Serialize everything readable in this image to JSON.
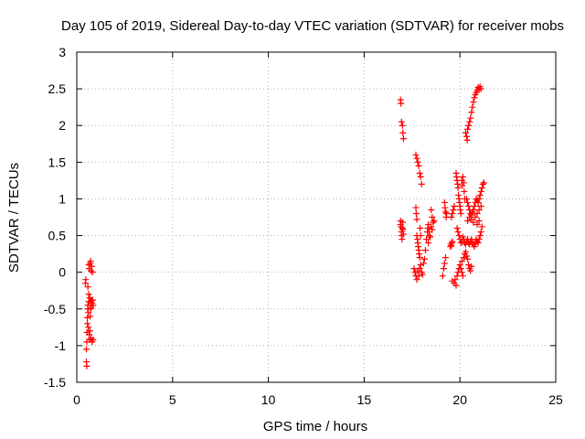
{
  "chart_data": {
    "type": "scatter",
    "title": "Day 105 of 2019, Sidereal Day-to-day VTEC variation (SDTVAR) for receiver mobs",
    "xlabel": "GPS time / hours",
    "ylabel": "SDTVAR / TECUs",
    "xlim": [
      0,
      25
    ],
    "ylim": [
      -1.5,
      3
    ],
    "grid": true,
    "marker": "+",
    "color": "#ff0000",
    "x_ticks": [
      "0",
      "5",
      "10",
      "15",
      "20",
      "25"
    ],
    "y_ticks": [
      "-1.5",
      "-1",
      "-0.5",
      "0",
      "0.5",
      "1",
      "1.5",
      "2",
      "2.5",
      "3"
    ],
    "series": [
      {
        "name": "SDTVAR",
        "points": [
          [
            0.45,
            -0.15
          ],
          [
            0.47,
            -0.1
          ],
          [
            0.5,
            -1.22
          ],
          [
            0.52,
            -1.28
          ],
          [
            0.5,
            -1.05
          ],
          [
            0.52,
            -0.95
          ],
          [
            0.53,
            -0.82
          ],
          [
            0.55,
            -0.7
          ],
          [
            0.55,
            -0.62
          ],
          [
            0.57,
            -0.5
          ],
          [
            0.58,
            -0.45
          ],
          [
            0.6,
            -0.55
          ],
          [
            0.62,
            -0.4
          ],
          [
            0.62,
            -0.3
          ],
          [
            0.63,
            0.1
          ],
          [
            0.65,
            0.05
          ],
          [
            0.65,
            -0.85
          ],
          [
            0.67,
            -0.92
          ],
          [
            0.68,
            -0.35
          ],
          [
            0.7,
            0.12
          ],
          [
            0.7,
            -0.6
          ],
          [
            0.72,
            -0.5
          ],
          [
            0.72,
            0.15
          ],
          [
            0.73,
            -0.4
          ],
          [
            0.75,
            -0.9
          ],
          [
            0.75,
            -0.48
          ],
          [
            0.77,
            -0.38
          ],
          [
            0.78,
            0.08
          ],
          [
            0.8,
            -0.95
          ],
          [
            0.8,
            -0.42
          ],
          [
            0.82,
            0.0
          ],
          [
            0.83,
            -0.38
          ],
          [
            0.85,
            -0.92
          ],
          [
            0.85,
            -0.45
          ],
          [
            0.58,
            -0.2
          ],
          [
            0.6,
            -0.75
          ],
          [
            0.68,
            -0.8
          ],
          [
            0.74,
            0.02
          ],
          [
            16.9,
            2.35
          ],
          [
            16.92,
            2.3
          ],
          [
            16.95,
            2.05
          ],
          [
            17.0,
            2.0
          ],
          [
            17.02,
            1.9
          ],
          [
            17.05,
            1.82
          ],
          [
            16.9,
            0.7
          ],
          [
            16.9,
            0.65
          ],
          [
            16.92,
            0.62
          ],
          [
            16.95,
            0.55
          ],
          [
            16.95,
            0.5
          ],
          [
            16.98,
            0.45
          ],
          [
            17.0,
            0.68
          ],
          [
            17.0,
            0.6
          ],
          [
            17.02,
            0.58
          ],
          [
            17.05,
            0.52
          ],
          [
            17.7,
            1.6
          ],
          [
            17.75,
            1.55
          ],
          [
            17.8,
            1.5
          ],
          [
            17.85,
            1.45
          ],
          [
            17.9,
            1.35
          ],
          [
            17.95,
            1.3
          ],
          [
            18.0,
            1.2
          ],
          [
            17.7,
            0.88
          ],
          [
            17.72,
            0.8
          ],
          [
            17.75,
            0.72
          ],
          [
            17.75,
            0.5
          ],
          [
            17.78,
            0.45
          ],
          [
            17.8,
            0.4
          ],
          [
            17.82,
            0.35
          ],
          [
            17.85,
            0.3
          ],
          [
            17.87,
            0.25
          ],
          [
            17.9,
            0.2
          ],
          [
            17.92,
            0.6
          ],
          [
            17.95,
            0.5
          ],
          [
            17.6,
            0.05
          ],
          [
            17.65,
            0.0
          ],
          [
            17.7,
            -0.05
          ],
          [
            17.75,
            -0.1
          ],
          [
            17.8,
            0.02
          ],
          [
            17.85,
            -0.05
          ],
          [
            17.9,
            0.05
          ],
          [
            17.95,
            0.1
          ],
          [
            18.0,
            0.0
          ],
          [
            18.05,
            -0.03
          ],
          [
            18.1,
            0.12
          ],
          [
            18.15,
            0.18
          ],
          [
            18.2,
            0.3
          ],
          [
            18.25,
            0.45
          ],
          [
            18.3,
            0.55
          ],
          [
            18.32,
            0.6
          ],
          [
            18.35,
            0.65
          ],
          [
            18.38,
            0.55
          ],
          [
            18.4,
            0.5
          ],
          [
            18.45,
            0.48
          ],
          [
            18.5,
            0.62
          ],
          [
            18.55,
            0.58
          ],
          [
            18.6,
            0.68
          ],
          [
            18.65,
            0.7
          ],
          [
            18.5,
            0.85
          ],
          [
            18.55,
            0.75
          ],
          [
            18.35,
            0.4
          ],
          [
            19.2,
            0.95
          ],
          [
            19.22,
            0.88
          ],
          [
            19.25,
            0.82
          ],
          [
            19.28,
            0.75
          ],
          [
            19.3,
            0.8
          ],
          [
            19.1,
            -0.05
          ],
          [
            19.15,
            0.05
          ],
          [
            19.2,
            0.12
          ],
          [
            19.25,
            0.2
          ],
          [
            19.5,
            0.35
          ],
          [
            19.52,
            0.38
          ],
          [
            19.55,
            0.36
          ],
          [
            19.58,
            0.4
          ],
          [
            19.6,
            0.42
          ],
          [
            19.6,
            0.8
          ],
          [
            19.65,
            0.85
          ],
          [
            19.7,
            0.9
          ],
          [
            19.55,
            0.75
          ],
          [
            19.6,
            -0.12
          ],
          [
            19.7,
            -0.15
          ],
          [
            19.75,
            -0.1
          ],
          [
            19.8,
            -0.18
          ],
          [
            19.85,
            -0.05
          ],
          [
            19.9,
            0.0
          ],
          [
            19.95,
            0.05
          ],
          [
            19.8,
            1.35
          ],
          [
            19.82,
            1.3
          ],
          [
            19.85,
            1.25
          ],
          [
            19.88,
            1.2
          ],
          [
            19.9,
            1.15
          ],
          [
            19.92,
            1.05
          ],
          [
            19.95,
            1.0
          ],
          [
            19.98,
            0.95
          ],
          [
            20.0,
            0.9
          ],
          [
            20.02,
            0.85
          ],
          [
            20.05,
            0.8
          ],
          [
            20.1,
            1.25
          ],
          [
            20.12,
            1.18
          ],
          [
            20.15,
            1.3
          ],
          [
            20.2,
            1.22
          ],
          [
            20.22,
            1.1
          ],
          [
            20.25,
            1.0
          ],
          [
            19.85,
            0.6
          ],
          [
            19.9,
            0.55
          ],
          [
            19.95,
            0.5
          ],
          [
            20.0,
            0.45
          ],
          [
            20.05,
            0.4
          ],
          [
            20.1,
            0.42
          ],
          [
            20.15,
            0.48
          ],
          [
            20.2,
            0.45
          ],
          [
            20.25,
            0.4
          ],
          [
            20.3,
            0.38
          ],
          [
            20.35,
            0.42
          ],
          [
            20.4,
            0.45
          ],
          [
            20.45,
            0.4
          ],
          [
            20.5,
            0.38
          ],
          [
            20.55,
            0.42
          ],
          [
            20.6,
            0.45
          ],
          [
            20.65,
            0.4
          ],
          [
            20.7,
            0.38
          ],
          [
            20.75,
            0.35
          ],
          [
            20.8,
            0.4
          ],
          [
            20.85,
            0.45
          ],
          [
            20.9,
            0.42
          ],
          [
            20.95,
            0.4
          ],
          [
            21.0,
            0.45
          ],
          [
            21.05,
            0.5
          ],
          [
            21.1,
            0.55
          ],
          [
            21.15,
            0.62
          ],
          [
            20.0,
            0.1
          ],
          [
            20.05,
            0.05
          ],
          [
            20.1,
            0.0
          ],
          [
            20.15,
            -0.05
          ],
          [
            20.1,
            0.15
          ],
          [
            20.2,
            0.2
          ],
          [
            20.25,
            0.25
          ],
          [
            20.3,
            0.28
          ],
          [
            20.35,
            0.22
          ],
          [
            20.4,
            0.18
          ],
          [
            20.45,
            0.1
          ],
          [
            20.5,
            0.05
          ],
          [
            20.55,
            0.02
          ],
          [
            20.6,
            0.08
          ],
          [
            20.3,
            1.9
          ],
          [
            20.35,
            1.85
          ],
          [
            20.38,
            1.8
          ],
          [
            20.4,
            1.95
          ],
          [
            20.45,
            2.0
          ],
          [
            20.5,
            2.05
          ],
          [
            20.55,
            2.1
          ],
          [
            20.6,
            2.18
          ],
          [
            20.65,
            2.25
          ],
          [
            20.7,
            2.32
          ],
          [
            20.75,
            2.38
          ],
          [
            20.8,
            2.42
          ],
          [
            20.85,
            2.45
          ],
          [
            20.9,
            2.48
          ],
          [
            20.95,
            2.52
          ],
          [
            21.0,
            2.5
          ],
          [
            21.05,
            2.53
          ],
          [
            21.1,
            2.5
          ],
          [
            20.35,
            1.0
          ],
          [
            20.4,
            0.95
          ],
          [
            20.45,
            0.9
          ],
          [
            20.5,
            0.85
          ],
          [
            20.55,
            0.8
          ],
          [
            20.6,
            0.78
          ],
          [
            20.65,
            0.82
          ],
          [
            20.7,
            0.85
          ],
          [
            20.75,
            0.9
          ],
          [
            20.8,
            0.95
          ],
          [
            20.85,
            1.0
          ],
          [
            20.9,
            0.98
          ],
          [
            20.95,
            0.95
          ],
          [
            21.0,
            1.0
          ],
          [
            21.05,
            1.05
          ],
          [
            21.1,
            1.1
          ],
          [
            21.15,
            1.15
          ],
          [
            21.2,
            1.2
          ],
          [
            21.25,
            1.22
          ],
          [
            20.4,
            0.7
          ],
          [
            20.5,
            0.75
          ],
          [
            20.6,
            0.72
          ],
          [
            20.7,
            0.68
          ],
          [
            20.8,
            0.75
          ],
          [
            20.9,
            0.8
          ],
          [
            21.0,
            0.85
          ],
          [
            21.1,
            0.9
          ],
          [
            21.0,
            0.7
          ],
          [
            20.9,
            0.65
          ]
        ]
      }
    ]
  }
}
